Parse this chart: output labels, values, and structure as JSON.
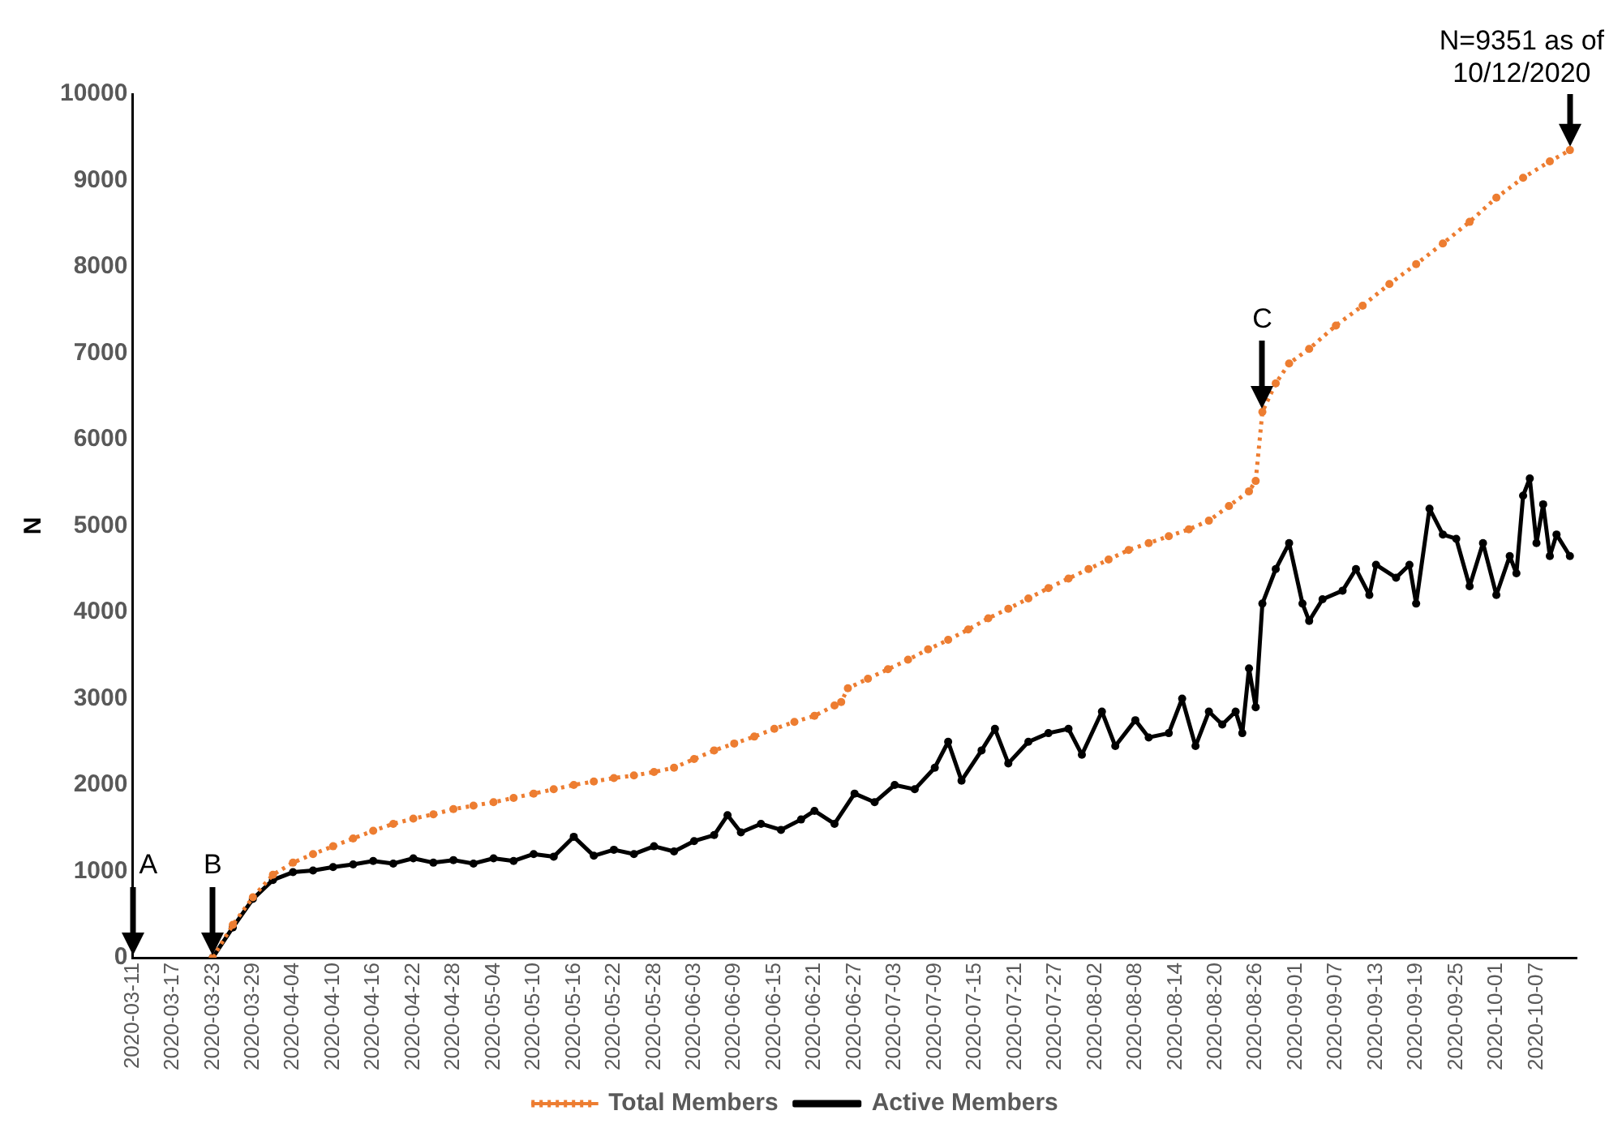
{
  "chart_data": {
    "type": "line",
    "ylabel": "N",
    "xlim": [
      "2020-03-11",
      "2020-10-13"
    ],
    "xticks": [
      "2020-03-11",
      "2020-03-17",
      "2020-03-23",
      "2020-03-29",
      "2020-04-04",
      "2020-04-10",
      "2020-04-16",
      "2020-04-22",
      "2020-04-28",
      "2020-05-04",
      "2020-05-10",
      "2020-05-16",
      "2020-05-22",
      "2020-05-28",
      "2020-06-03",
      "2020-06-09",
      "2020-06-15",
      "2020-06-21",
      "2020-06-27",
      "2020-07-03",
      "2020-07-09",
      "2020-07-15",
      "2020-07-21",
      "2020-07-27",
      "2020-08-02",
      "2020-08-08",
      "2020-08-14",
      "2020-08-20",
      "2020-08-26",
      "2020-09-01",
      "2020-09-07",
      "2020-09-13",
      "2020-09-19",
      "2020-09-25",
      "2020-10-01",
      "2020-10-07"
    ],
    "ylim": [
      0,
      10000
    ],
    "yticks": [
      0,
      1000,
      2000,
      3000,
      4000,
      5000,
      6000,
      7000,
      8000,
      9000,
      10000
    ],
    "grid": false,
    "legend": "bottom",
    "marker": "circle",
    "series": [
      {
        "name": "Total Members",
        "color": "#ed7d31",
        "line_style": "dotted",
        "x": [
          "2020-03-23",
          "2020-03-26",
          "2020-03-29",
          "2020-04-01",
          "2020-04-04",
          "2020-04-07",
          "2020-04-10",
          "2020-04-13",
          "2020-04-16",
          "2020-04-19",
          "2020-04-22",
          "2020-04-25",
          "2020-04-28",
          "2020-05-01",
          "2020-05-04",
          "2020-05-07",
          "2020-05-10",
          "2020-05-13",
          "2020-05-16",
          "2020-05-19",
          "2020-05-22",
          "2020-05-25",
          "2020-05-28",
          "2020-05-31",
          "2020-06-03",
          "2020-06-06",
          "2020-06-09",
          "2020-06-12",
          "2020-06-15",
          "2020-06-18",
          "2020-06-21",
          "2020-06-24",
          "2020-06-25",
          "2020-06-26",
          "2020-06-29",
          "2020-07-02",
          "2020-07-05",
          "2020-07-08",
          "2020-07-11",
          "2020-07-14",
          "2020-07-17",
          "2020-07-20",
          "2020-07-23",
          "2020-07-26",
          "2020-07-29",
          "2020-08-01",
          "2020-08-04",
          "2020-08-07",
          "2020-08-10",
          "2020-08-13",
          "2020-08-16",
          "2020-08-19",
          "2020-08-22",
          "2020-08-25",
          "2020-08-26",
          "2020-08-27",
          "2020-08-29",
          "2020-08-31",
          "2020-09-03",
          "2020-09-07",
          "2020-09-11",
          "2020-09-15",
          "2020-09-19",
          "2020-09-23",
          "2020-09-27",
          "2020-10-01",
          "2020-10-05",
          "2020-10-09",
          "2020-10-12"
        ],
        "values": [
          0,
          380,
          700,
          960,
          1100,
          1200,
          1290,
          1380,
          1470,
          1550,
          1610,
          1660,
          1720,
          1760,
          1800,
          1850,
          1900,
          1950,
          2000,
          2040,
          2080,
          2110,
          2150,
          2200,
          2300,
          2400,
          2480,
          2560,
          2650,
          2730,
          2800,
          2920,
          2960,
          3120,
          3230,
          3340,
          3450,
          3570,
          3680,
          3800,
          3930,
          4040,
          4160,
          4280,
          4390,
          4500,
          4610,
          4720,
          4800,
          4880,
          4960,
          5060,
          5230,
          5400,
          5520,
          6320,
          6650,
          6880,
          7050,
          7320,
          7550,
          7800,
          8030,
          8270,
          8520,
          8800,
          9030,
          9220,
          9351
        ]
      },
      {
        "name": "Active Members",
        "color": "#000000",
        "line_style": "solid",
        "x": [
          "2020-03-23",
          "2020-03-26",
          "2020-03-29",
          "2020-04-01",
          "2020-04-04",
          "2020-04-07",
          "2020-04-10",
          "2020-04-13",
          "2020-04-16",
          "2020-04-19",
          "2020-04-22",
          "2020-04-25",
          "2020-04-28",
          "2020-05-01",
          "2020-05-04",
          "2020-05-07",
          "2020-05-10",
          "2020-05-13",
          "2020-05-16",
          "2020-05-19",
          "2020-05-22",
          "2020-05-25",
          "2020-05-28",
          "2020-05-31",
          "2020-06-03",
          "2020-06-06",
          "2020-06-08",
          "2020-06-10",
          "2020-06-13",
          "2020-06-16",
          "2020-06-19",
          "2020-06-21",
          "2020-06-24",
          "2020-06-27",
          "2020-06-30",
          "2020-07-03",
          "2020-07-06",
          "2020-07-09",
          "2020-07-11",
          "2020-07-13",
          "2020-07-16",
          "2020-07-18",
          "2020-07-20",
          "2020-07-23",
          "2020-07-26",
          "2020-07-29",
          "2020-07-31",
          "2020-08-03",
          "2020-08-05",
          "2020-08-08",
          "2020-08-10",
          "2020-08-13",
          "2020-08-15",
          "2020-08-17",
          "2020-08-19",
          "2020-08-21",
          "2020-08-23",
          "2020-08-24",
          "2020-08-25",
          "2020-08-26",
          "2020-08-27",
          "2020-08-29",
          "2020-08-31",
          "2020-09-02",
          "2020-09-03",
          "2020-09-05",
          "2020-09-08",
          "2020-09-10",
          "2020-09-12",
          "2020-09-13",
          "2020-09-16",
          "2020-09-18",
          "2020-09-19",
          "2020-09-21",
          "2020-09-23",
          "2020-09-25",
          "2020-09-27",
          "2020-09-29",
          "2020-10-01",
          "2020-10-03",
          "2020-10-04",
          "2020-10-05",
          "2020-10-06",
          "2020-10-07",
          "2020-10-08",
          "2020-10-09",
          "2020-10-10",
          "2020-10-12"
        ],
        "values": [
          0,
          350,
          680,
          900,
          990,
          1010,
          1050,
          1080,
          1120,
          1090,
          1150,
          1100,
          1130,
          1090,
          1150,
          1120,
          1200,
          1170,
          1400,
          1180,
          1250,
          1200,
          1290,
          1230,
          1350,
          1420,
          1650,
          1450,
          1550,
          1480,
          1600,
          1700,
          1550,
          1900,
          1800,
          2000,
          1950,
          2200,
          2500,
          2050,
          2400,
          2650,
          2250,
          2500,
          2600,
          2650,
          2350,
          2850,
          2450,
          2750,
          2550,
          2600,
          3000,
          2450,
          2850,
          2700,
          2850,
          2600,
          3350,
          2900,
          4100,
          4500,
          4800,
          4100,
          3900,
          4150,
          4250,
          4500,
          4200,
          4550,
          4400,
          4550,
          4100,
          5200,
          4900,
          4850,
          4300,
          4800,
          4200,
          4650,
          4450,
          5350,
          5550,
          4800,
          5250,
          4650,
          4900,
          4650
        ]
      }
    ],
    "annotations": [
      "A",
      {
        "text": "B",
        "x": "2020-03-23",
        "y": 0
      },
      {
        "text": "C",
        "x": "2020-08-27",
        "y": 6320
      },
      {
        "text": "N=9351 as of 10/12/2020",
        "x": "2020-10-12",
        "y": 9351
      }
    ]
  }
}
